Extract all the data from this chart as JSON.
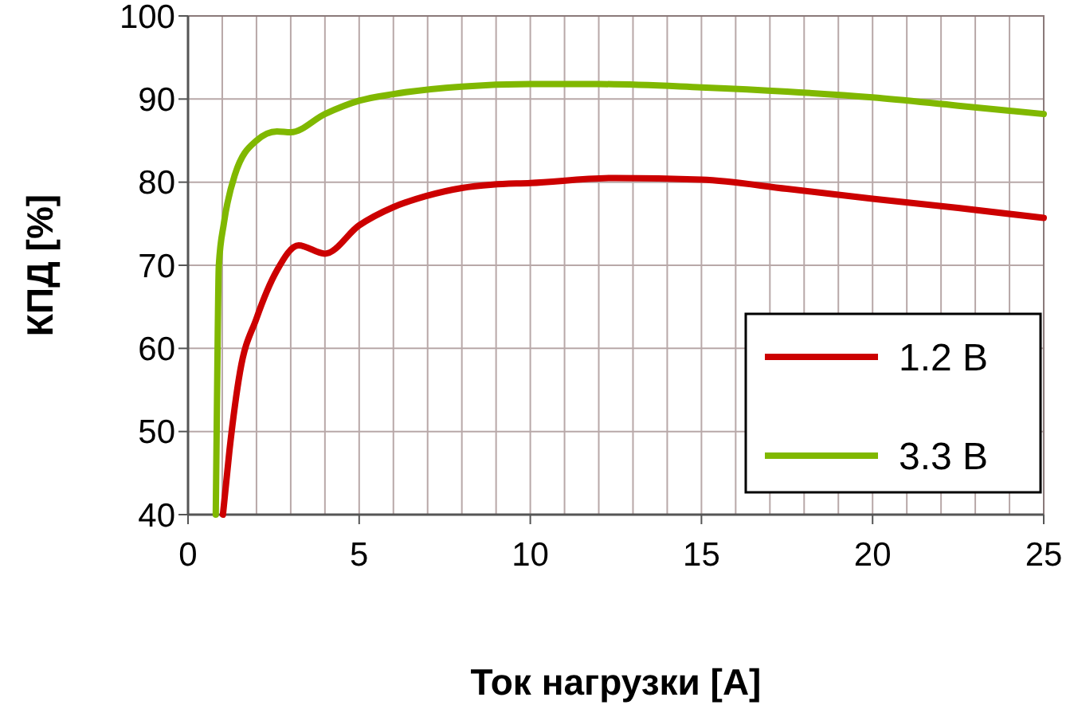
{
  "chart_data": {
    "type": "line",
    "xlabel": "Ток нагрузки [A]",
    "ylabel": "КПД [%]",
    "xlim": [
      0,
      25
    ],
    "ylim": [
      40,
      100
    ],
    "xticks": [
      0,
      {
        "value": 1,
        "label": null
      },
      {
        "value": 2,
        "label": null
      },
      {
        "value": 3,
        "label": null
      },
      {
        "value": 4,
        "label": null
      },
      5,
      {
        "value": 6,
        "label": null
      },
      {
        "value": 7,
        "label": null
      },
      {
        "value": 8,
        "label": null
      },
      {
        "value": 9,
        "label": null
      },
      10,
      {
        "value": 11,
        "label": null
      },
      {
        "value": 12,
        "label": null
      },
      {
        "value": 13,
        "label": null
      },
      {
        "value": 14,
        "label": null
      },
      15,
      {
        "value": 16,
        "label": null
      },
      {
        "value": 17,
        "label": null
      },
      {
        "value": 18,
        "label": null
      },
      {
        "value": 19,
        "label": null
      },
      20,
      {
        "value": 21,
        "label": null
      },
      {
        "value": 22,
        "label": null
      },
      {
        "value": 23,
        "label": null
      },
      {
        "value": 24,
        "label": null
      },
      25
    ],
    "yticks": [
      40,
      50,
      60,
      70,
      80,
      90,
      100
    ],
    "grid": true,
    "legend": "bottom right",
    "marker": "none",
    "line_style": "solid",
    "series": [
      {
        "name": "1.2 B",
        "color": "#cc0000",
        "x": [
          1.02,
          1.21,
          1.52,
          2.0,
          2.6,
          3.23,
          4.0,
          5.0,
          6.0,
          6.93,
          8.0,
          8.9,
          10,
          12.5,
          15,
          17.5,
          20,
          22.5,
          25
        ],
        "values": [
          40,
          47.7,
          57.2,
          63.6,
          69.4,
          72.4,
          71.4,
          74.8,
          77.0,
          78.3,
          79.3,
          79.7,
          79.9,
          80.5,
          80.3,
          79.2,
          78.0,
          76.9,
          75.7
        ]
      },
      {
        "name": "3.3 B",
        "color": "#80b800",
        "x": [
          0.81,
          0.85,
          0.9,
          1.05,
          1.37,
          2.0,
          2.6,
          3.0,
          4.0,
          5.0,
          6.0,
          8.0,
          10,
          12,
          15,
          17.5,
          20,
          22.5,
          25
        ],
        "values": [
          40,
          55,
          70,
          75.1,
          80.9,
          85.0,
          86.1,
          86.0,
          88.2,
          89.8,
          90.6,
          91.5,
          91.8,
          91.8,
          91.4,
          90.9,
          90.2,
          89.2,
          88.2
        ]
      }
    ]
  }
}
